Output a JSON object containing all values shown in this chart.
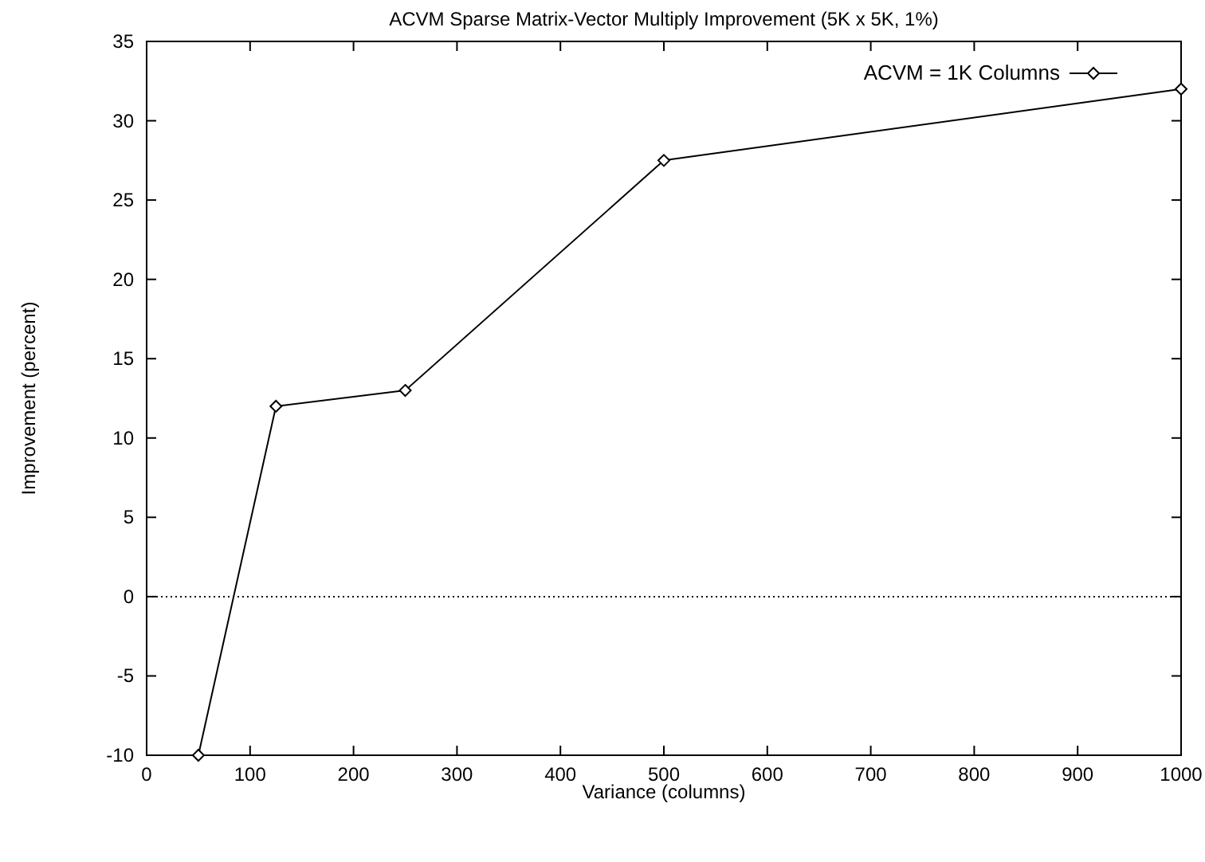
{
  "chart_data": {
    "type": "line",
    "title": "ACVM Sparse Matrix-Vector Multiply Improvement (5K x 5K, 1%)",
    "xlabel": "Variance (columns)",
    "ylabel": "Improvement (percent)",
    "x": [
      50,
      125,
      250,
      500,
      1000
    ],
    "series": [
      {
        "name": "ACVM = 1K Columns",
        "color": "#000000",
        "values": [
          -10,
          12,
          13,
          27.5,
          32
        ]
      }
    ],
    "xlim": [
      0,
      1000
    ],
    "xticks": [
      0,
      100,
      200,
      300,
      400,
      500,
      600,
      700,
      800,
      900,
      1000
    ],
    "ylim": [
      -10,
      35
    ],
    "yticks": [
      -10,
      -5,
      0,
      5,
      10,
      15,
      20,
      25,
      30,
      35
    ],
    "ref_lines": [
      {
        "axis": "y",
        "value": 0,
        "line_style": "dotted"
      }
    ],
    "marker": "diamond",
    "line_style": "solid",
    "legend": "top right",
    "grid": false
  }
}
